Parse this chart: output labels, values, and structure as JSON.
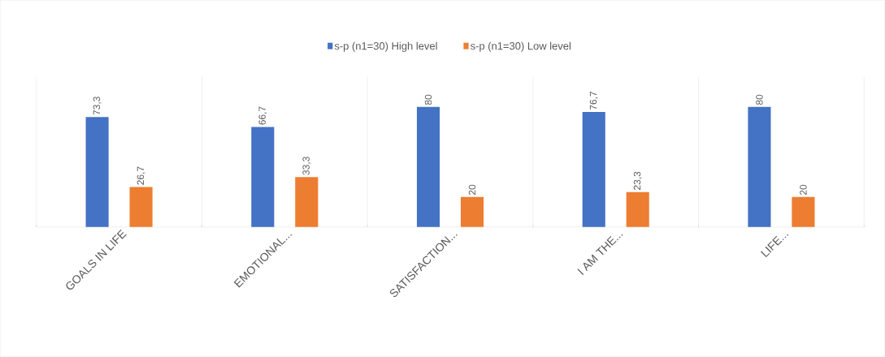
{
  "chart_data": {
    "type": "bar",
    "categories": [
      "GOALS IN LIFE",
      "EMOTIONAL...",
      "SATISFACTION...",
      "I AM THE...",
      "LIFE..."
    ],
    "series": [
      {
        "name": "s-p (n1=30) High level",
        "color": "#4472c4",
        "values": [
          73.3,
          66.7,
          80,
          76.7,
          80
        ],
        "value_labels": [
          "73,3",
          "66,7",
          "80",
          "76,7",
          "80"
        ]
      },
      {
        "name": "s-p (n1=30) Low level",
        "color": "#ed7d31",
        "values": [
          26.7,
          33.3,
          20,
          23.3,
          20
        ],
        "value_labels": [
          "26,7",
          "33,3",
          "20",
          "23,3",
          "20"
        ]
      }
    ],
    "grid": "x",
    "legend": "top"
  }
}
